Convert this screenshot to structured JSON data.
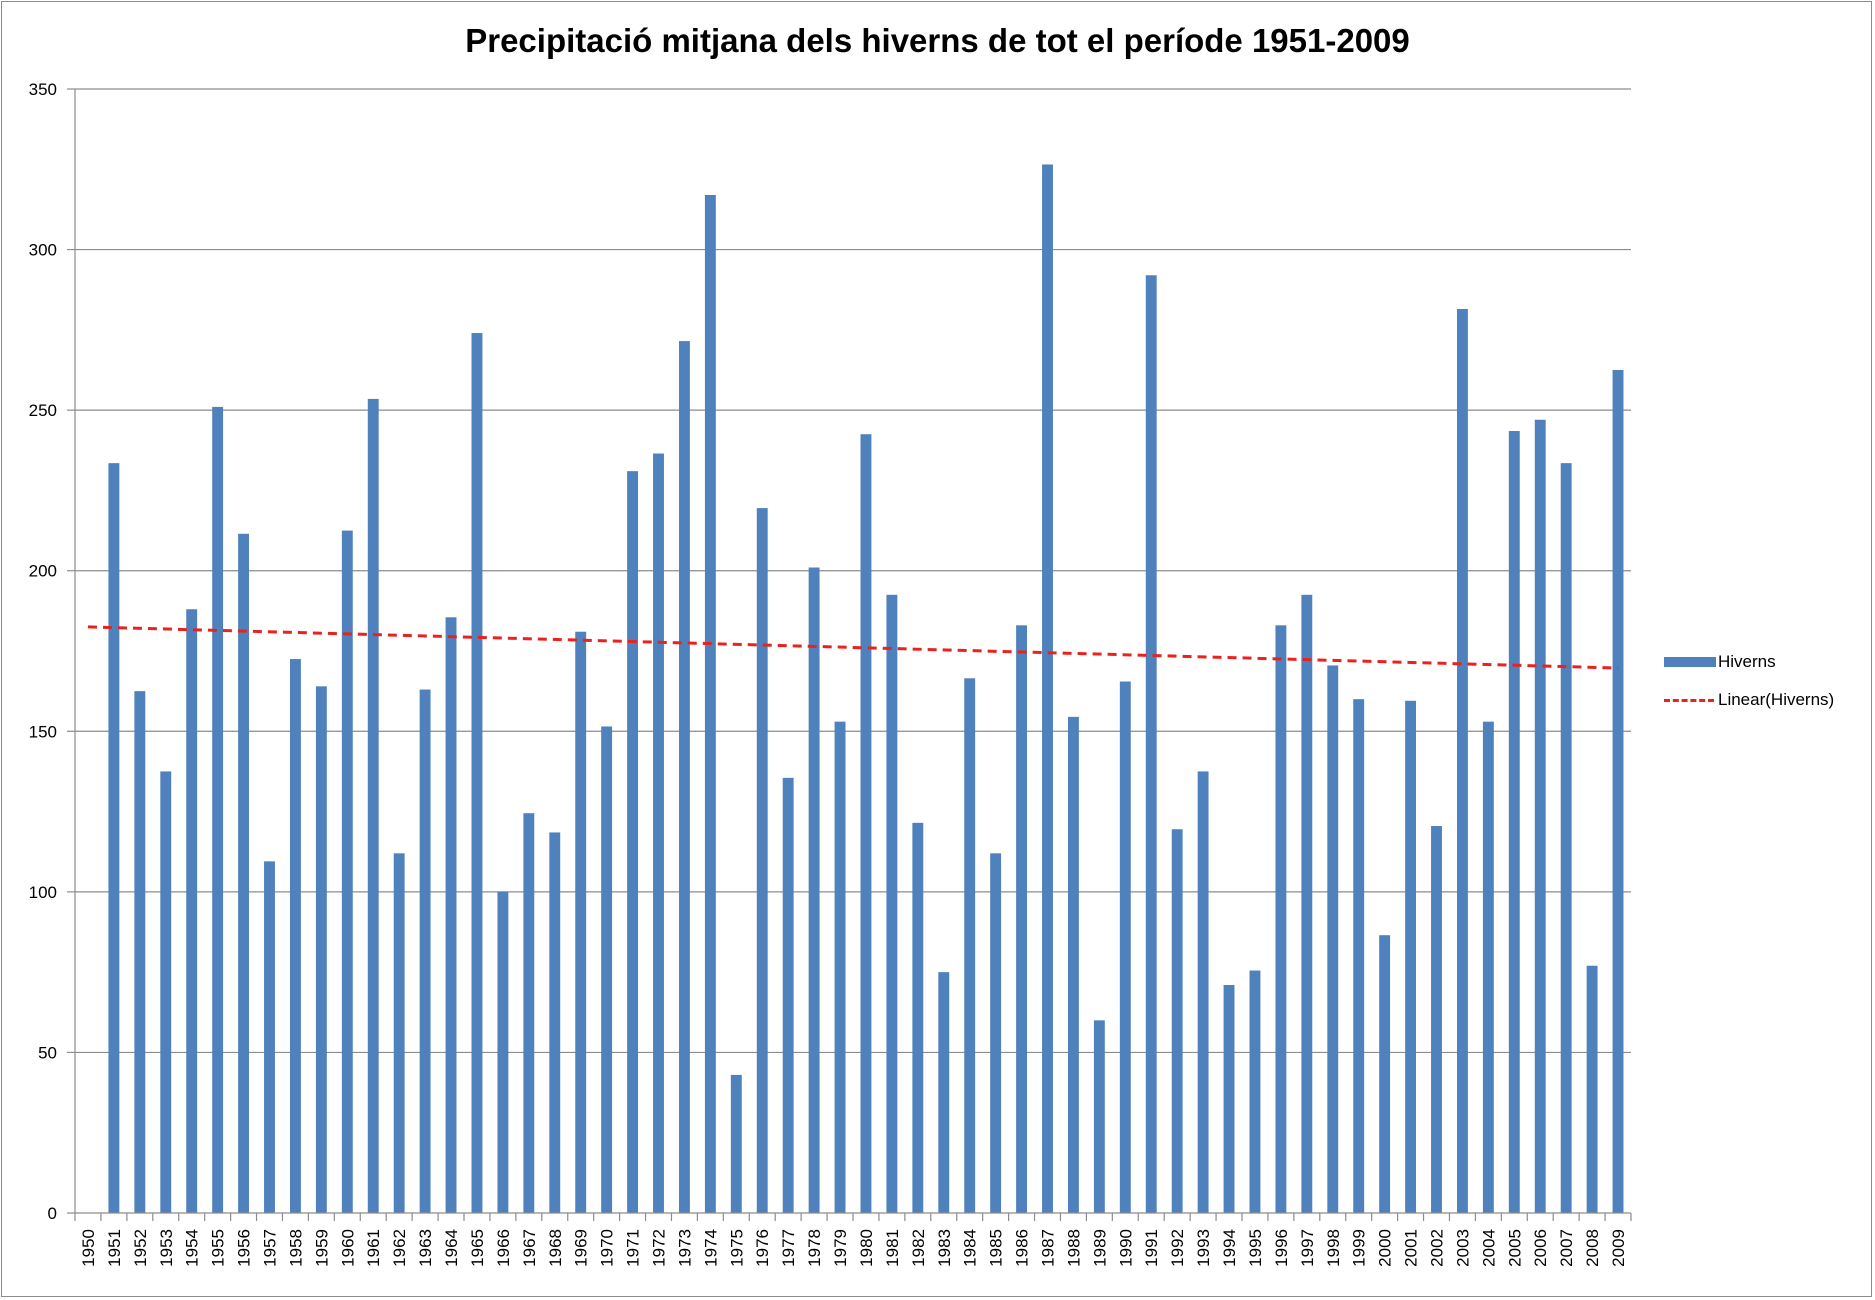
{
  "chart_data": {
    "type": "bar",
    "title": "Precipitació mitjana dels hiverns de tot el període 1951-2009",
    "xlabel": "",
    "ylabel": "",
    "ylim": [
      0,
      350
    ],
    "yticks": [
      "0",
      "50",
      "100",
      "150",
      "200",
      "250",
      "300",
      "350"
    ],
    "grid": true,
    "legend_position": "right",
    "categories": [
      "1950",
      "1951",
      "1952",
      "1953",
      "1954",
      "1955",
      "1956",
      "1957",
      "1958",
      "1959",
      "1960",
      "1961",
      "1962",
      "1963",
      "1964",
      "1965",
      "1966",
      "1967",
      "1968",
      "1969",
      "1970",
      "1971",
      "1972",
      "1973",
      "1974",
      "1975",
      "1976",
      "1977",
      "1978",
      "1979",
      "1980",
      "1981",
      "1982",
      "1983",
      "1984",
      "1985",
      "1986",
      "1987",
      "1988",
      "1989",
      "1990",
      "1991",
      "1992",
      "1993",
      "1994",
      "1995",
      "1996",
      "1997",
      "1998",
      "1999",
      "2000",
      "2001",
      "2002",
      "2003",
      "2004",
      "2005",
      "2006",
      "2007",
      "2008",
      "2009"
    ],
    "series": [
      {
        "name": "Hiverns",
        "color": "#4f81bd",
        "values": [
          null,
          233.5,
          162.5,
          137.5,
          188,
          251,
          211.5,
          109.5,
          172.5,
          164,
          212.5,
          253.5,
          112,
          163,
          185.5,
          274,
          100,
          124.5,
          118.5,
          181,
          151.5,
          231,
          236.5,
          271.5,
          317,
          43,
          219.5,
          135.5,
          201,
          153,
          242.5,
          192.5,
          121.5,
          75,
          166.5,
          112,
          183,
          326.5,
          154.5,
          60,
          165.5,
          292,
          119.5,
          137.5,
          71,
          75.5,
          183,
          192.5,
          170.5,
          160,
          86.5,
          159.5,
          120.5,
          281.5,
          153,
          243.5,
          247,
          233.5,
          77,
          262.5
        ]
      }
    ],
    "trendline": {
      "name": "Linear(Hiverns)",
      "color": "#e8231f",
      "start": {
        "x": "1950",
        "y": 182.5
      },
      "end": {
        "x": "2009",
        "y": 169.7
      }
    }
  }
}
